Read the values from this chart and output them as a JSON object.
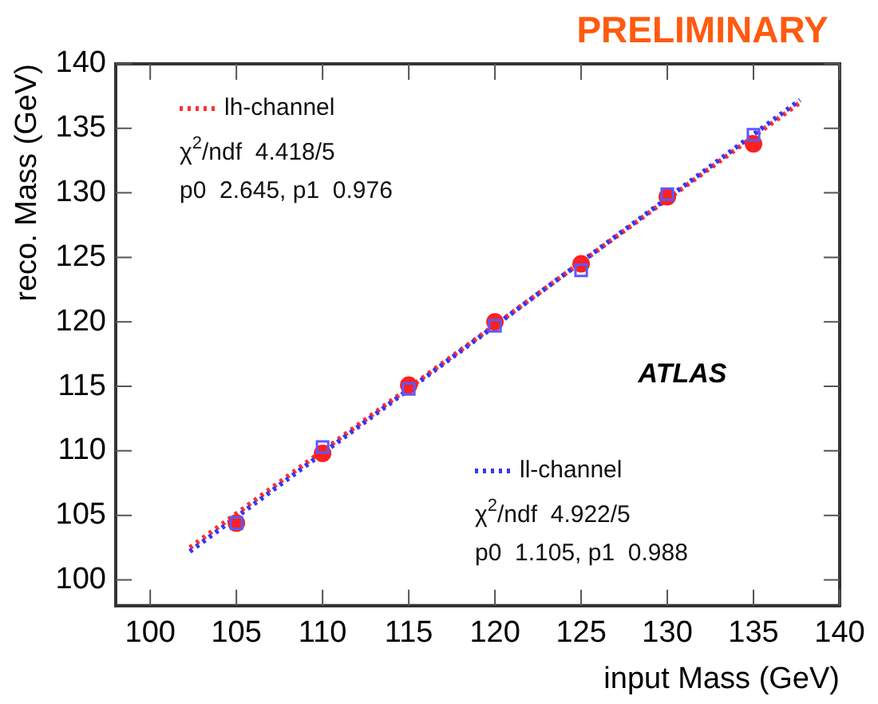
{
  "chart_data": {
    "type": "scatter",
    "xlabel": "input Mass (GeV)",
    "ylabel": "reco. Mass (GeV)",
    "xlim": [
      98,
      140
    ],
    "xticks": [
      100,
      105,
      110,
      115,
      120,
      125,
      130,
      135,
      140
    ],
    "ylim": [
      98,
      140
    ],
    "yticks": [
      100,
      105,
      110,
      115,
      120,
      125,
      130,
      135,
      140
    ],
    "grid": false,
    "legend": "top left",
    "series": [
      {
        "name": "lh-channel",
        "type": "line",
        "color": "#ff3030",
        "line_style": "dotted",
        "marker": "none",
        "x": [
          102.3,
          137.7
        ],
        "values": [
          102.5,
          137.0
        ]
      },
      {
        "name": "ll-channel",
        "type": "line",
        "color": "#3535ff",
        "line_style": "dotted",
        "marker": "none",
        "x": [
          102.3,
          137.7
        ],
        "values": [
          102.2,
          137.2
        ]
      },
      {
        "color": "#ff2020",
        "marker": "circle",
        "x": [
          105,
          110,
          115,
          120,
          125,
          130,
          135
        ],
        "values": [
          104.4,
          109.8,
          115.1,
          120.0,
          124.5,
          129.7,
          133.8
        ]
      },
      {
        "color": "#5a5aff",
        "marker": "square",
        "x": [
          105,
          110,
          115,
          120,
          125,
          130,
          135
        ],
        "values": [
          104.4,
          110.3,
          114.8,
          119.7,
          124.0,
          129.9,
          134.5
        ]
      }
    ],
    "annotations": [
      "χ$^{2}$/ndf  4.418/5",
      "p0  2.645, p1  0.976",
      "χ$^{2}$/ndf  4.922/5",
      "p0  1.105, p1  0.988",
      "PRELIMINARY",
      "ATLAS"
    ]
  }
}
